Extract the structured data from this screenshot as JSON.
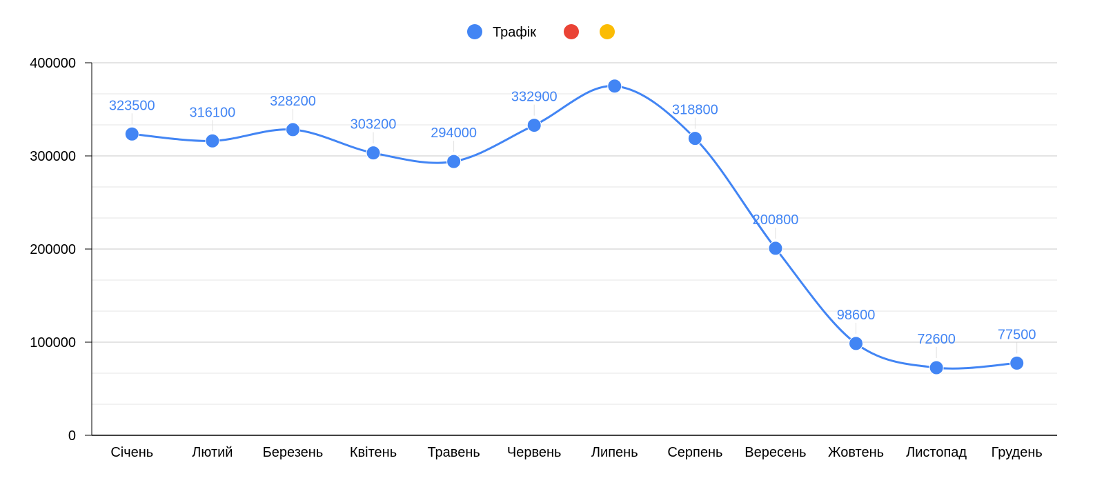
{
  "chart_data": {
    "type": "line",
    "smooth": true,
    "title": "",
    "xlabel": "",
    "ylabel": "",
    "categories": [
      "Січень",
      "Лютий",
      "Березень",
      "Квітень",
      "Травень",
      "Червень",
      "Липень",
      "Серпень",
      "Вересень",
      "Жовтень",
      "Листопад",
      "Грудень"
    ],
    "series": [
      {
        "name": "Трафік",
        "color": "#4285f4",
        "values": [
          323500,
          316100,
          328200,
          303200,
          294000,
          332900,
          375000,
          318800,
          200800,
          98600,
          72600,
          77500
        ],
        "labels": [
          "323500",
          "316100",
          "328200",
          "303200",
          "294000",
          "332900",
          "",
          "318800",
          "200800",
          "98600",
          "72600",
          "77500"
        ]
      }
    ],
    "legend": {
      "position": "top",
      "entries": [
        {
          "label": "Трафік",
          "color": "#4285f4"
        },
        {
          "label": "",
          "color": "#ea4335"
        },
        {
          "label": "",
          "color": "#fbbc04"
        }
      ]
    },
    "ylim": [
      0,
      400000
    ],
    "y_ticks": [
      "0",
      "100000",
      "200000",
      "300000",
      "400000"
    ],
    "grid": true,
    "colors": {
      "major_grid": "#c8c8c8",
      "minor_grid": "#e6e6e6",
      "axis": "#000000"
    }
  }
}
